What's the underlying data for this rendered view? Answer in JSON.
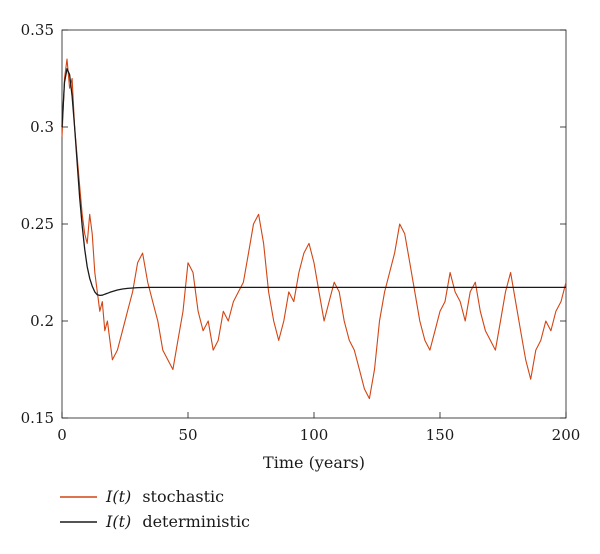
{
  "chart_data": {
    "type": "line",
    "xlabel": "Time (years)",
    "ylabel": "",
    "title": "",
    "xlim": [
      0,
      200
    ],
    "ylim": [
      0.15,
      0.35
    ],
    "xticks": [
      0,
      50,
      100,
      150,
      200
    ],
    "xtick_labels": [
      "0",
      "50",
      "100",
      "150",
      "200"
    ],
    "yticks": [
      0.15,
      0.2,
      0.25,
      0.3,
      0.35
    ],
    "ytick_labels": [
      "0.15",
      "0.2",
      "0.25",
      "0.3",
      "0.35"
    ],
    "grid": false,
    "legend_position": "bottom-left",
    "series": [
      {
        "name": "I(t) stochastic",
        "legend_var": "I(t)",
        "legend_word": "stochastic",
        "color": "#d24514",
        "x": [
          0,
          1,
          2,
          3,
          4,
          5,
          6,
          7,
          8,
          9,
          10,
          11,
          12,
          13,
          14,
          15,
          16,
          17,
          18,
          19,
          20,
          22,
          24,
          26,
          28,
          30,
          32,
          34,
          36,
          38,
          40,
          42,
          44,
          46,
          48,
          50,
          52,
          54,
          56,
          58,
          60,
          62,
          64,
          66,
          68,
          70,
          72,
          74,
          76,
          78,
          80,
          82,
          84,
          86,
          88,
          90,
          92,
          94,
          96,
          98,
          100,
          102,
          104,
          106,
          108,
          110,
          112,
          114,
          116,
          118,
          120,
          122,
          124,
          126,
          128,
          130,
          132,
          134,
          136,
          138,
          140,
          142,
          144,
          146,
          148,
          150,
          152,
          154,
          156,
          158,
          160,
          162,
          164,
          166,
          168,
          170,
          172,
          174,
          176,
          178,
          180,
          182,
          184,
          186,
          188,
          190,
          192,
          194,
          196,
          198,
          200
        ],
        "y": [
          0.295,
          0.325,
          0.335,
          0.32,
          0.325,
          0.3,
          0.285,
          0.27,
          0.255,
          0.245,
          0.24,
          0.255,
          0.245,
          0.225,
          0.215,
          0.205,
          0.21,
          0.195,
          0.2,
          0.19,
          0.18,
          0.185,
          0.195,
          0.205,
          0.215,
          0.23,
          0.235,
          0.22,
          0.21,
          0.2,
          0.185,
          0.18,
          0.175,
          0.19,
          0.205,
          0.23,
          0.225,
          0.205,
          0.195,
          0.2,
          0.185,
          0.19,
          0.205,
          0.2,
          0.21,
          0.215,
          0.22,
          0.235,
          0.25,
          0.255,
          0.24,
          0.215,
          0.2,
          0.19,
          0.2,
          0.215,
          0.21,
          0.225,
          0.235,
          0.24,
          0.23,
          0.215,
          0.2,
          0.21,
          0.22,
          0.215,
          0.2,
          0.19,
          0.185,
          0.175,
          0.165,
          0.16,
          0.175,
          0.2,
          0.215,
          0.225,
          0.235,
          0.25,
          0.245,
          0.23,
          0.215,
          0.2,
          0.19,
          0.185,
          0.195,
          0.205,
          0.21,
          0.225,
          0.215,
          0.21,
          0.2,
          0.215,
          0.22,
          0.205,
          0.195,
          0.19,
          0.185,
          0.2,
          0.215,
          0.225,
          0.21,
          0.195,
          0.18,
          0.17,
          0.185,
          0.19,
          0.2,
          0.195,
          0.205,
          0.21,
          0.22
        ]
      },
      {
        "name": "I(t) deterministic",
        "legend_var": "I(t)",
        "legend_word": "deterministic",
        "color": "#1a1a1a",
        "x": [
          0,
          1,
          2,
          3,
          4,
          5,
          6,
          7,
          8,
          9,
          10,
          11,
          12,
          13,
          14,
          15,
          16,
          17,
          18,
          19,
          20,
          22,
          24,
          26,
          28,
          30,
          35,
          40,
          50,
          60,
          80,
          100,
          120,
          140,
          160,
          180,
          200
        ],
        "y": [
          0.3,
          0.323,
          0.33,
          0.327,
          0.316,
          0.3,
          0.282,
          0.264,
          0.249,
          0.237,
          0.228,
          0.222,
          0.218,
          0.215,
          0.2135,
          0.2132,
          0.2133,
          0.2138,
          0.2143,
          0.2148,
          0.2152,
          0.216,
          0.2165,
          0.2168,
          0.217,
          0.2172,
          0.2173,
          0.2173,
          0.2173,
          0.2173,
          0.2173,
          0.2173,
          0.2173,
          0.2173,
          0.2173,
          0.2173,
          0.2173
        ]
      }
    ]
  }
}
